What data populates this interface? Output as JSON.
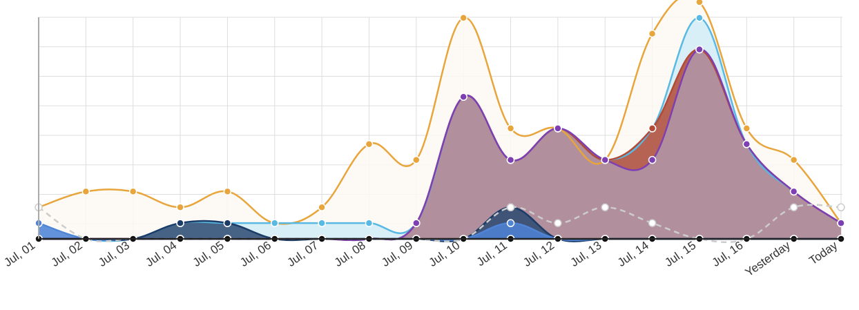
{
  "chart_data": {
    "type": "area",
    "categories": [
      "Jul, 01",
      "Jul, 02",
      "Jul, 03",
      "Jul, 04",
      "Jul, 05",
      "Jul, 06",
      "Jul, 07",
      "Jul, 08",
      "Jul, 09",
      "Jul, 10",
      "Jul, 11",
      "Jul, 12",
      "Jul, 13",
      "Jul, 14",
      "Jul, 15",
      "Jul, 16",
      "Yesterday",
      "Today"
    ],
    "ylim": [
      0,
      15
    ],
    "grid": true,
    "legend": "none",
    "title": "",
    "xlabel": "",
    "ylabel": "",
    "series": [
      {
        "color": "#e8a53b",
        "fill": "#fdf8f2",
        "values": [
          2,
          3,
          3,
          2,
          3,
          1,
          2,
          6,
          5,
          14,
          7,
          7,
          5,
          13,
          15,
          7,
          5,
          1
        ]
      },
      {
        "color": "#58b9e3",
        "fill": "#d4edf7",
        "values": [
          1,
          0,
          0,
          1,
          1,
          1,
          1,
          1,
          1,
          9,
          5,
          7,
          5,
          7,
          14,
          6,
          3,
          1
        ]
      },
      {
        "color": "#b24a36",
        "fill": "#b24a36",
        "values": [
          0,
          0,
          0,
          0,
          0,
          0,
          0,
          0,
          1,
          9,
          5,
          7,
          5,
          7,
          12,
          6,
          3,
          1
        ]
      },
      {
        "color": "#7e3fb2",
        "fill": "#b096aa",
        "values": [
          0,
          0,
          0,
          0,
          0,
          0,
          0,
          0,
          1,
          9,
          5,
          7,
          5,
          5,
          12,
          6,
          3,
          1
        ]
      },
      {
        "color": "#1c3c68",
        "fill": "#2d4a72",
        "values": [
          0,
          0,
          0,
          1,
          1,
          0,
          0,
          0,
          0,
          0,
          2,
          0,
          0,
          0,
          0,
          0,
          0,
          0
        ]
      },
      {
        "color": "#4f84d6",
        "fill": "#4f84d6",
        "values": [
          1,
          0,
          0,
          0,
          0,
          0,
          0,
          0,
          0,
          0,
          1,
          0,
          0,
          0,
          0,
          0,
          0,
          0
        ]
      },
      {
        "color": "#cccccc",
        "fill": "none",
        "values": [
          2,
          0,
          0,
          0,
          0,
          0,
          0,
          0,
          0,
          0,
          2,
          1,
          2,
          1,
          0,
          0,
          2,
          2
        ]
      },
      {
        "color": "#111111",
        "fill": "none",
        "values": [
          0,
          0,
          0,
          0,
          0,
          0,
          0,
          0,
          0,
          0,
          0,
          0,
          0,
          0,
          0,
          0,
          0,
          0
        ]
      }
    ]
  }
}
